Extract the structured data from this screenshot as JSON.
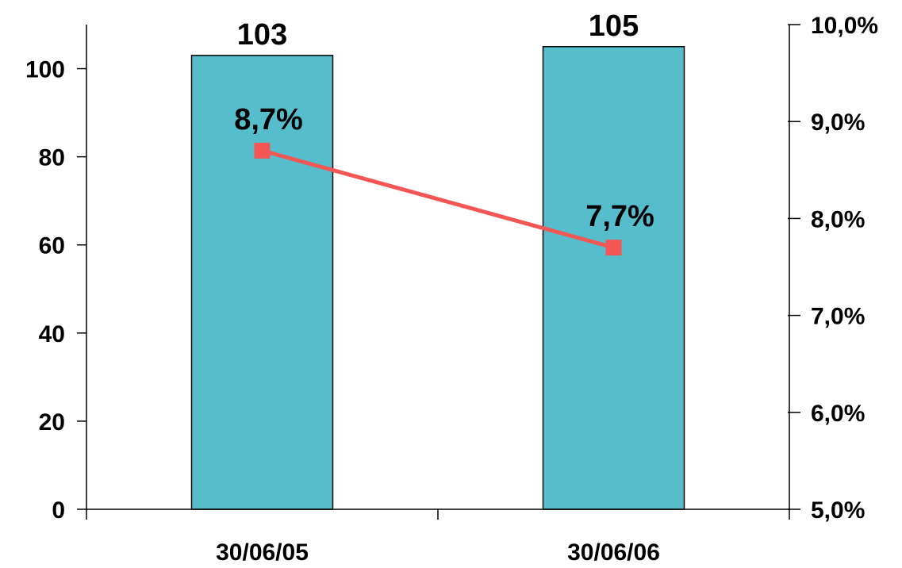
{
  "chart_data": {
    "type": "bar",
    "categories": [
      "30/06/05",
      "30/06/06"
    ],
    "series": [
      {
        "kind": "bar",
        "axis": "left",
        "values": [
          103,
          105
        ],
        "labels": [
          "103",
          "105"
        ],
        "color": "#55BDCC"
      },
      {
        "kind": "line",
        "axis": "right",
        "values": [
          8.7,
          7.7
        ],
        "labels": [
          "8,7%",
          "7,7%"
        ],
        "color": "#F45555"
      }
    ],
    "left_axis": {
      "ylim": [
        0,
        110
      ],
      "ticks": [
        0,
        20,
        40,
        60,
        80,
        100
      ],
      "tick_labels": [
        "0",
        "20",
        "40",
        "60",
        "80",
        "100"
      ]
    },
    "right_axis": {
      "ylim": [
        5,
        10
      ],
      "ticks": [
        5,
        6,
        7,
        8,
        9,
        10
      ],
      "tick_labels": [
        "5,0%",
        "6,0%",
        "7,0%",
        "8,0%",
        "9,0%",
        "10,0%"
      ]
    },
    "grid": false,
    "legend": "none"
  }
}
